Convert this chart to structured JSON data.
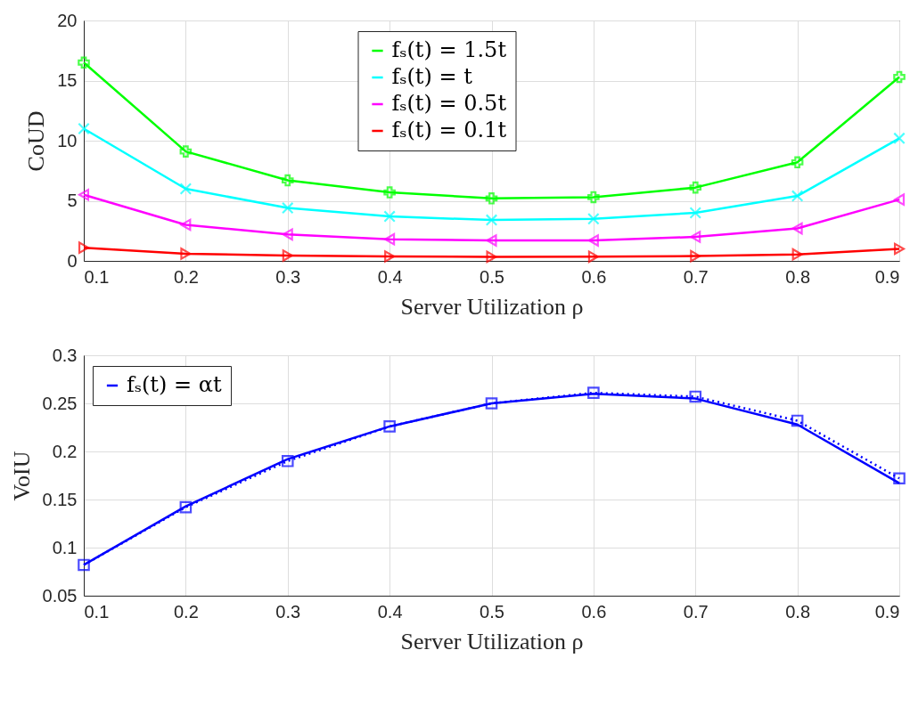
{
  "chart_data": [
    {
      "type": "line",
      "xlabel": "Server Utilization ρ",
      "ylabel": "CoUD",
      "x": [
        0.1,
        0.2,
        0.3,
        0.4,
        0.5,
        0.6,
        0.7,
        0.8,
        0.9
      ],
      "xlim": [
        0.1,
        0.9
      ],
      "xticks": [
        0.1,
        0.2,
        0.3,
        0.4,
        0.5,
        0.6,
        0.7,
        0.8,
        0.9
      ],
      "ylim": [
        0,
        20
      ],
      "yticks": [
        0,
        5,
        10,
        15,
        20
      ],
      "grid": true,
      "legend": "top",
      "series": [
        {
          "name": "fₛ(t) = 1.5t",
          "color": "#00ff00",
          "marker": "cross",
          "values": [
            16.5,
            9.1,
            6.7,
            5.7,
            5.2,
            5.3,
            6.1,
            8.2,
            15.3
          ]
        },
        {
          "name": "fₛ(t) = t",
          "color": "#00ffff",
          "marker": "x",
          "values": [
            11.0,
            6.0,
            4.4,
            3.7,
            3.4,
            3.5,
            4.0,
            5.4,
            10.2
          ]
        },
        {
          "name": "fₛ(t) = 0.5t",
          "color": "#ff00ff",
          "marker": "triangle-left",
          "values": [
            5.5,
            3.0,
            2.2,
            1.8,
            1.7,
            1.7,
            2.0,
            2.7,
            5.1
          ]
        },
        {
          "name": "fₛ(t) = 0.1t",
          "color": "#ff0000",
          "marker": "triangle-right",
          "values": [
            1.1,
            0.6,
            0.44,
            0.37,
            0.34,
            0.35,
            0.4,
            0.54,
            1.0
          ]
        }
      ]
    },
    {
      "type": "line",
      "xlabel": "Server Utilization ρ",
      "ylabel": "VoIU",
      "x": [
        0.1,
        0.2,
        0.3,
        0.4,
        0.5,
        0.6,
        0.7,
        0.8,
        0.9
      ],
      "xlim": [
        0.1,
        0.9
      ],
      "xticks": [
        0.1,
        0.2,
        0.3,
        0.4,
        0.5,
        0.6,
        0.7,
        0.8,
        0.9
      ],
      "ylim": [
        0.05,
        0.3
      ],
      "yticks": [
        0.05,
        0.1,
        0.15,
        0.2,
        0.25,
        0.3
      ],
      "grid": true,
      "legend": "top left",
      "series": [
        {
          "name": "fₛ(t) = αt",
          "color": "#0000ff",
          "marker": "none",
          "line_style": "solid",
          "values": [
            0.082,
            0.143,
            0.192,
            0.226,
            0.25,
            0.26,
            0.255,
            0.228,
            0.167
          ]
        },
        {
          "color": "#0000ff",
          "marker": "square",
          "line_style": "dotted",
          "values": [
            0.082,
            0.142,
            0.19,
            0.226,
            0.25,
            0.261,
            0.257,
            0.232,
            0.172
          ]
        }
      ]
    }
  ]
}
